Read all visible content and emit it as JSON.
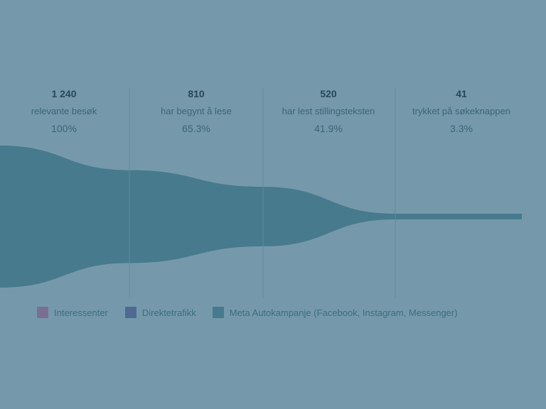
{
  "chart_data": {
    "type": "funnel",
    "stages": [
      {
        "count": "1 240",
        "label": "relevante besøk",
        "percent": "100%",
        "value": 1240
      },
      {
        "count": "810",
        "label": "har begynt å lese",
        "percent": "65.3%",
        "value": 810
      },
      {
        "count": "520",
        "label": "har lest stillingsteksten",
        "percent": "41.9%",
        "value": 520
      },
      {
        "count": "41",
        "label": "trykket på søkeknappen",
        "percent": "3.3%",
        "value": 41
      }
    ],
    "legend": [
      {
        "name": "Interessenter",
        "color": "#7a6f92"
      },
      {
        "name": "Direktetrafikk",
        "color": "#4e6a92"
      },
      {
        "name": "Meta Autokampanje (Facebook, Instagram, Messenger)",
        "color": "#467a8c"
      }
    ],
    "funnel_color": "#467a8c",
    "divider_color": "#5f8ba0"
  }
}
